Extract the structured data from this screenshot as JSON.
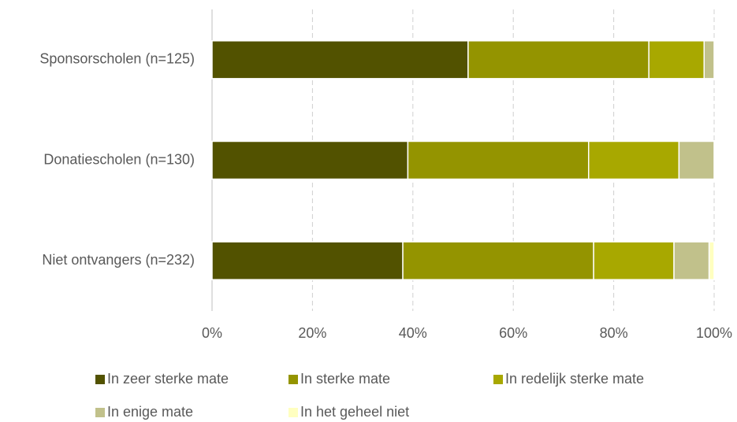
{
  "chart_data": {
    "type": "bar",
    "orientation": "horizontal",
    "stacked": true,
    "categories": [
      "Sponsorscholen (n=125)",
      "Donatiescholen (n=130)",
      "Niet ontvangers (n=232)"
    ],
    "series": [
      {
        "name": "In zeer sterke mate",
        "color": "#525200",
        "values": [
          51,
          39,
          38
        ]
      },
      {
        "name": "In sterke mate",
        "color": "#949400",
        "values": [
          36,
          36,
          38
        ]
      },
      {
        "name": "In redelijk sterke mate",
        "color": "#a8a800",
        "values": [
          11,
          18,
          16
        ]
      },
      {
        "name": "In enige mate",
        "color": "#c1c18b",
        "values": [
          2,
          7,
          7
        ]
      },
      {
        "name": "In het geheel niet",
        "color": "#ffffc0",
        "values": [
          0,
          0,
          1
        ]
      }
    ],
    "xlim": [
      0,
      100
    ],
    "xticks": [
      {
        "value": 0,
        "label": "0%"
      },
      {
        "value": 20,
        "label": "20%"
      },
      {
        "value": 40,
        "label": "40%"
      },
      {
        "value": 60,
        "label": "60%"
      },
      {
        "value": 80,
        "label": "80%"
      },
      {
        "value": 100,
        "label": "100%"
      }
    ],
    "grid": true,
    "legend": "bottom"
  }
}
